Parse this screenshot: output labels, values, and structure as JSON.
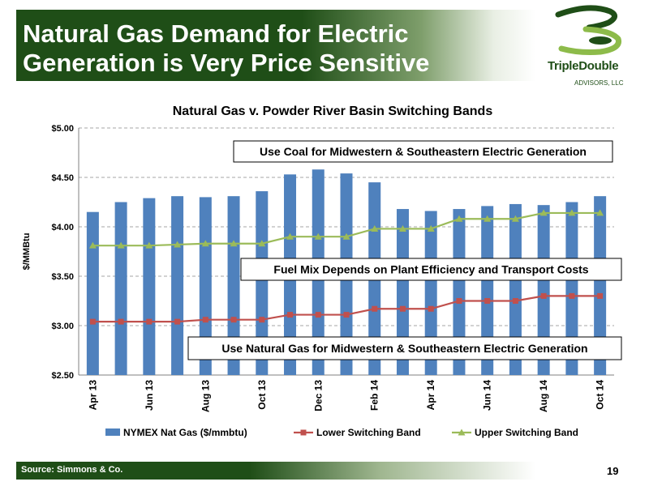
{
  "slide": {
    "title_line1": "Natural Gas Demand for Electric",
    "title_line2": "Generation is Very Price Sensitive",
    "source": "Source: Simmons & Co.",
    "page_number": "19",
    "logo_name": "TripleDouble",
    "logo_sub": "ADVISORS, LLC",
    "brand_color": "#1f4e17"
  },
  "chart_data": {
    "type": "bar",
    "title": "Natural Gas v. Powder River Basin Switching Bands",
    "ylabel": "$/MMBtu",
    "xlabel": "",
    "ylim": [
      2.5,
      5.0
    ],
    "yticks": [
      "$2.50",
      "$3.00",
      "$3.50",
      "$4.00",
      "$4.50",
      "$5.00"
    ],
    "ytick_values": [
      2.5,
      3.0,
      3.5,
      4.0,
      4.5,
      5.0
    ],
    "grid": true,
    "legend_position": "bottom",
    "categories": [
      "Apr 13",
      "May 13",
      "Jun 13",
      "Jul 13",
      "Aug 13",
      "Sep 13",
      "Oct 13",
      "Nov 13",
      "Dec 13",
      "Jan 14",
      "Feb 14",
      "Mar 14",
      "Apr 14",
      "May 14",
      "Jun 14",
      "Jul 14",
      "Aug 14",
      "Sep 14",
      "Oct 14"
    ],
    "tick_labels": [
      "Apr 13",
      "",
      "Jun 13",
      "",
      "Aug 13",
      "",
      "Oct 13",
      "",
      "Dec 13",
      "",
      "Feb 14",
      "",
      "Apr 14",
      "",
      "Jun 14",
      "",
      "Aug 14",
      "",
      "Oct 14"
    ],
    "series": [
      {
        "name": "NYMEX Nat Gas ($/mmbtu)",
        "kind": "bar",
        "color": "#4f81bd",
        "values": [
          4.15,
          4.25,
          4.29,
          4.31,
          4.3,
          4.31,
          4.36,
          4.53,
          4.58,
          4.54,
          4.45,
          4.18,
          4.16,
          4.18,
          4.21,
          4.23,
          4.22,
          4.25,
          4.31
        ]
      },
      {
        "name": "Lower Switching Band",
        "kind": "line",
        "marker": "square",
        "color": "#c0504d",
        "values": [
          3.04,
          3.04,
          3.04,
          3.04,
          3.06,
          3.06,
          3.06,
          3.11,
          3.11,
          3.11,
          3.17,
          3.17,
          3.17,
          3.25,
          3.25,
          3.25,
          3.3,
          3.3,
          3.3
        ]
      },
      {
        "name": "Upper Switching Band",
        "kind": "line",
        "marker": "triangle",
        "color": "#9bbb59",
        "values": [
          3.81,
          3.81,
          3.81,
          3.82,
          3.83,
          3.83,
          3.83,
          3.9,
          3.9,
          3.9,
          3.98,
          3.98,
          3.98,
          4.08,
          4.08,
          4.08,
          4.14,
          4.14,
          4.14
        ]
      }
    ],
    "annotations": [
      "Use Coal for Midwestern & Southeastern Electric Generation",
      "Fuel Mix Depends on Plant Efficiency and Transport Costs",
      "Use Natural Gas for Midwestern & Southeastern Electric Generation"
    ]
  }
}
